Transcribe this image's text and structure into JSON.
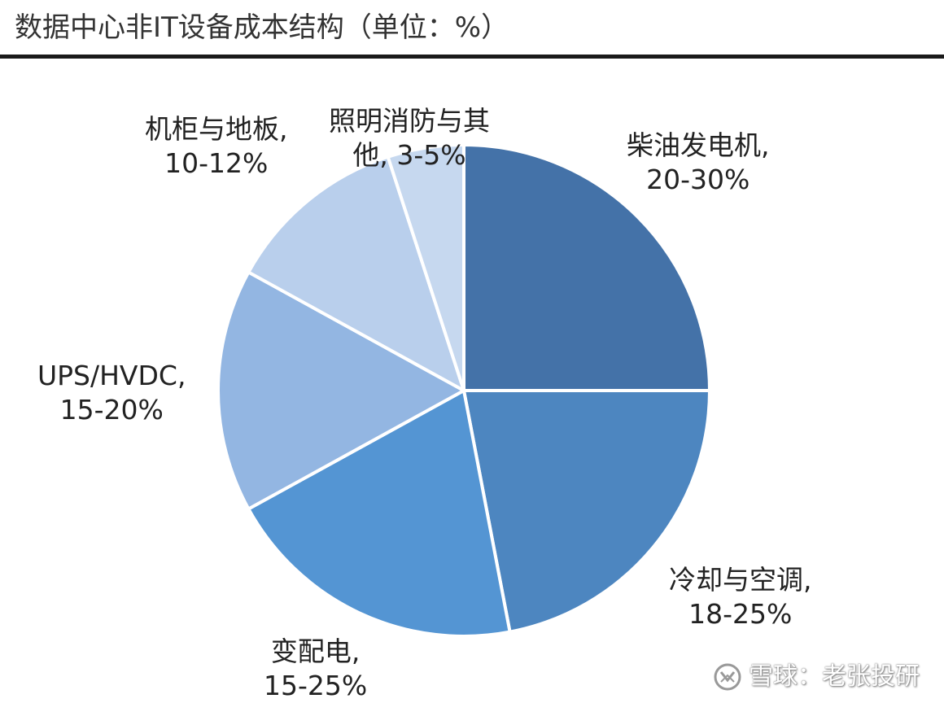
{
  "chart_data": {
    "type": "pie",
    "title": "数据中心非IT设备成本结构（单位：%）",
    "slices": [
      {
        "name": "柴油发电机",
        "range": "20-30%",
        "value": 25,
        "color": "#4472a8"
      },
      {
        "name": "冷却与空调",
        "range": "18-25%",
        "value": 22,
        "color": "#4d86c0"
      },
      {
        "name": "变配电",
        "range": "15-25%",
        "value": 20,
        "color": "#5495d3"
      },
      {
        "name": "UPS/HVDC",
        "range": "15-20%",
        "value": 16,
        "color": "#93b6e2"
      },
      {
        "name": "机柜与地板",
        "range": "10-12%",
        "value": 12,
        "color": "#b9cfec"
      },
      {
        "name": "照明消防与其他",
        "range": "3-5%",
        "value": 5,
        "color": "#c6d8ef"
      }
    ]
  },
  "labels": {
    "diesel": {
      "line1": "柴油发电机,",
      "line2": "20-30%"
    },
    "cooling": {
      "line1": "冷却与空调,",
      "line2": "18-25%"
    },
    "power": {
      "line1": "变配电,",
      "line2": "15-25%"
    },
    "ups": {
      "line1": "UPS/HVDC,",
      "line2": "15-20%"
    },
    "cabinet": {
      "line1": "机柜与地板,",
      "line2": "10-12%"
    },
    "lighting": {
      "line1": "照明消防与其",
      "line2": "他, 3-5%"
    }
  },
  "watermark": {
    "text": "雪球：老张投研"
  }
}
